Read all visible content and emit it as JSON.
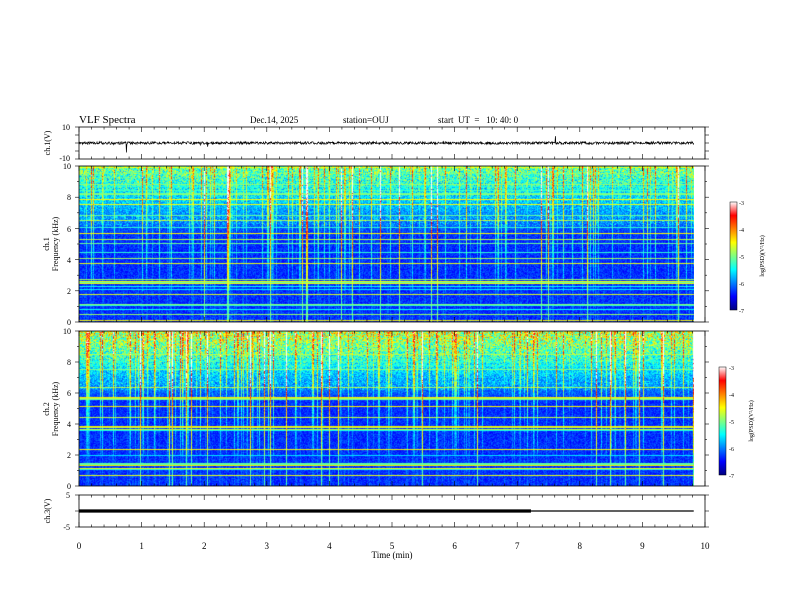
{
  "header": {
    "title": "VLF Spectra",
    "date": "Dec.14, 2025",
    "station": "station=OUJ",
    "start_ut": "start  UT  =   10: 40: 0"
  },
  "chart_data": [
    {
      "type": "line",
      "name": "ch1-waveform",
      "ylabel": "ch.1(V)",
      "ylim": [
        -10,
        10
      ],
      "yticks": [
        "10",
        "-10"
      ],
      "xlim": [
        0,
        10
      ],
      "baseline": 0,
      "visible_until_min": 9.82
    },
    {
      "type": "heatmap",
      "name": "ch1-spectrogram",
      "ylabel_line1": "ch.1",
      "ylabel_line2": "Frequency (kHz)",
      "ylim": [
        0,
        10
      ],
      "yticks": [
        "0",
        "2",
        "4",
        "6",
        "8",
        "10"
      ],
      "xlim": [
        0,
        10
      ],
      "visible_until_min": 9.82,
      "colorbar": {
        "label": "log(PSD)(V²/Hz)",
        "range": [
          -7,
          -3
        ],
        "ticks": [
          "-3",
          "-4",
          "-5",
          "-6",
          "-7"
        ]
      }
    },
    {
      "type": "heatmap",
      "name": "ch2-spectrogram",
      "ylabel_line1": "ch.2",
      "ylabel_line2": "Frequency (kHz)",
      "ylim": [
        0,
        10
      ],
      "yticks": [
        "0",
        "2",
        "4",
        "6",
        "8",
        "10"
      ],
      "xlim": [
        0,
        10
      ],
      "visible_until_min": 9.82,
      "colorbar": {
        "label": "log(PSD)(V²/Hz)",
        "range": [
          -7,
          -3
        ],
        "ticks": [
          "-3",
          "-4",
          "-5",
          "-6",
          "-7"
        ]
      }
    },
    {
      "type": "line",
      "name": "ch3-waveform",
      "ylabel": "ch.3(V)",
      "ylim": [
        -5,
        5
      ],
      "yticks": [
        "5",
        "-5"
      ],
      "xlim": [
        0,
        10
      ],
      "x": [
        0,
        7.22,
        7.22,
        9.82
      ],
      "y": [
        0,
        0,
        0,
        0
      ],
      "visible_until_min": 9.82
    }
  ],
  "x_axis": {
    "label": "Time (min)",
    "ticks": [
      "0",
      "1",
      "2",
      "3",
      "4",
      "5",
      "6",
      "7",
      "8",
      "9",
      "10"
    ]
  },
  "colors": {
    "frame": "#000000",
    "colormap": [
      "#000080",
      "#0000ff",
      "#0080ff",
      "#00ffff",
      "#80ff80",
      "#ffff00",
      "#ff8000",
      "#ff0000",
      "#ffffff"
    ]
  }
}
